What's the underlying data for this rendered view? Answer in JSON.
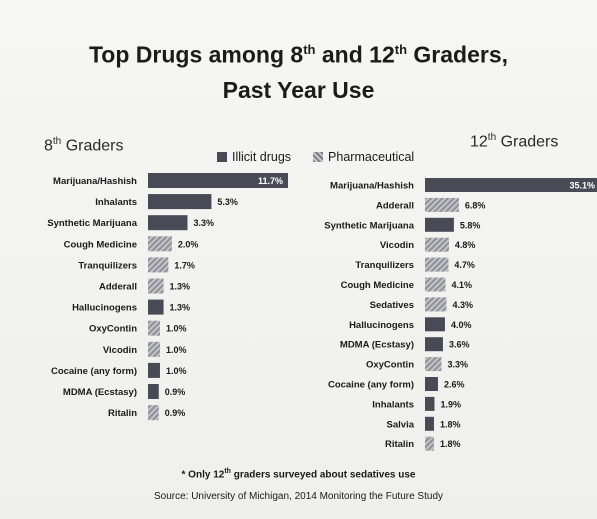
{
  "title": {
    "part1": "Top Drugs among  8",
    "sup1": "th",
    "part2": " and 12",
    "sup2": "th",
    "part3": " Graders,",
    "line2": "Past Year Use"
  },
  "legend": {
    "illicit": "Illicit drugs",
    "pharmaceutical": "Pharmaceutical"
  },
  "footnote": {
    "prefix": "* Only 12",
    "sup": "th",
    "suffix": " graders surveyed about sedatives use"
  },
  "source": "Source: University of Michigan, 2014 Monitoring the Future Study",
  "chart_data": [
    {
      "type": "bar",
      "orientation": "horizontal",
      "title_base": "8",
      "title_sup": "th",
      "title_rest": " Graders",
      "categories": [
        "Marijuana/Hashish",
        "Inhalants",
        "Synthetic Marijuana",
        "Cough Medicine",
        "Tranquilizers",
        "Adderall",
        "Hallucinogens",
        "OxyContin",
        "Vicodin",
        "Cocaine (any form)",
        "MDMA (Ecstasy)",
        "Ritalin"
      ],
      "values": [
        11.7,
        5.3,
        3.3,
        2.0,
        1.7,
        1.3,
        1.3,
        1.0,
        1.0,
        1.0,
        0.9,
        0.9
      ],
      "labels": [
        "11.7%",
        "5.3%",
        "3.3%",
        "2.0%",
        "1.7%",
        "1.3%",
        "1.3%",
        "1.0%",
        "1.0%",
        "1.0%",
        "0.9%",
        "0.9%"
      ],
      "kind": [
        "illicit",
        "illicit",
        "illicit",
        "pharmaceutical",
        "pharmaceutical",
        "pharmaceutical",
        "illicit",
        "pharmaceutical",
        "pharmaceutical",
        "illicit",
        "illicit",
        "pharmaceutical"
      ],
      "unit": "%"
    },
    {
      "type": "bar",
      "orientation": "horizontal",
      "title_base": "12",
      "title_sup": "th",
      "title_rest": " Graders",
      "categories": [
        "Marijuana/Hashish",
        "Adderall",
        "Synthetic Marijuana",
        "Vicodin",
        "Tranquilizers",
        "Cough Medicine",
        "Sedatives",
        "Hallucinogens",
        "MDMA (Ecstasy)",
        "OxyContin",
        "Cocaine (any form)",
        "Inhalants",
        "Salvia",
        "Ritalin"
      ],
      "values": [
        35.1,
        6.8,
        5.8,
        4.8,
        4.7,
        4.1,
        4.3,
        4.0,
        3.6,
        3.3,
        2.6,
        1.9,
        1.8,
        1.8
      ],
      "labels": [
        "35.1%",
        "6.8%",
        "5.8%",
        "4.8%",
        "4.7%",
        "4.1%",
        "4.3%",
        "4.0%",
        "3.6%",
        "3.3%",
        "2.6%",
        "1.9%",
        "1.8%",
        "1.8%"
      ],
      "kind": [
        "illicit",
        "pharmaceutical",
        "illicit",
        "pharmaceutical",
        "pharmaceutical",
        "pharmaceutical",
        "pharmaceutical",
        "illicit",
        "illicit",
        "pharmaceutical",
        "illicit",
        "illicit",
        "illicit",
        "pharmaceutical"
      ],
      "unit": "%"
    }
  ],
  "colors": {
    "illicit": "#4a4a56",
    "pharmaceutical": "#a9a9b0"
  }
}
